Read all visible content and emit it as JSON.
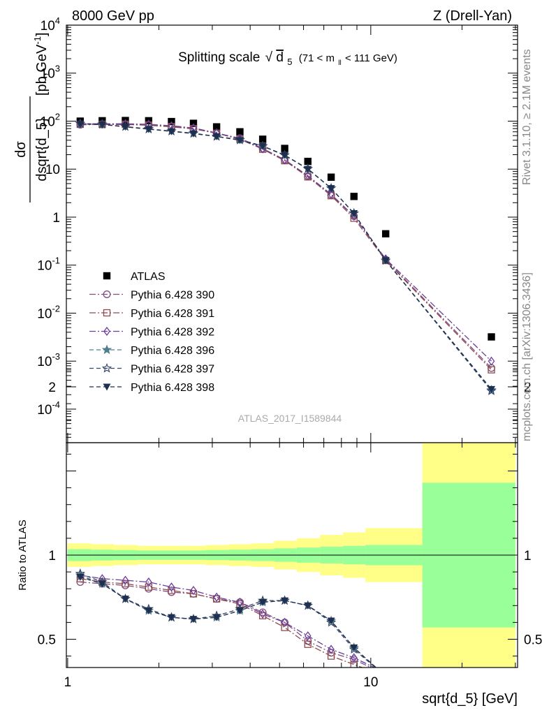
{
  "header": {
    "left": "8000 GeV pp",
    "right": "Z (Drell-Yan)"
  },
  "side_labels": {
    "rivet": "Rivet 3.1.10, ≥ 2.1M events",
    "mcplots": "mcplots.cern.ch [arXiv:1306.3436]"
  },
  "watermark": "ATLAS_2017_I1589844",
  "chart_data": [
    {
      "type": "scatter",
      "panel": "main",
      "title": "Splitting scale",
      "title_root": "d",
      "title_root_sub": "5",
      "title_cut_pre": "(71 < m",
      "title_cut_sub": "ll",
      "title_cut_post": " < 111 GeV)",
      "ylabel_num": "dσ",
      "ylabel_den": "dsqrt{d_5}",
      "ylabel_unit": "[pb,GeV",
      "ylabel_unit_sup": "-1",
      "ylabel_unit_close": "]",
      "yscale": "log",
      "xscale": "log",
      "xlim": [
        0.99,
        30.5
      ],
      "ylim": [
        2e-05,
        10000
      ],
      "y_ticks": [
        {
          "v": 0.0001,
          "base": "10",
          "exp": "-4"
        },
        {
          "v": 0.001,
          "base": "10",
          "exp": "-3"
        },
        {
          "v": 0.01,
          "base": "10",
          "exp": "-2"
        },
        {
          "v": 0.1,
          "base": "10",
          "exp": "-1"
        },
        {
          "v": 1,
          "base": "1",
          "exp": ""
        },
        {
          "v": 10,
          "base": "10",
          "exp": ""
        },
        {
          "v": 100,
          "base": "10",
          "exp": "2"
        },
        {
          "v": 1000,
          "base": "10",
          "exp": "3"
        },
        {
          "v": 10000,
          "base": "10",
          "exp": "4"
        }
      ],
      "x": [
        1.1,
        1.3,
        1.55,
        1.85,
        2.2,
        2.6,
        3.1,
        3.7,
        4.4,
        5.2,
        6.2,
        7.4,
        8.8,
        11.2,
        25.0
      ],
      "bin_edges": [
        1.0,
        1.2,
        1.42,
        1.7,
        2.0,
        2.4,
        2.85,
        3.4,
        4.05,
        4.8,
        5.7,
        6.8,
        8.1,
        9.6,
        14.8,
        30.0
      ],
      "series": [
        {
          "name": "ATLAS",
          "color": "#000000",
          "marker": "square",
          "dash": "",
          "y": [
            100,
            102,
            103,
            102,
            98,
            90,
            76,
            60,
            42,
            27,
            14.5,
            6.8,
            2.7,
            0.45,
            0.0032
          ]
        },
        {
          "name": "Pythia 6.428 390",
          "color": "#7f4d7f",
          "marker": "circle-open",
          "dash": "9,3,2,3",
          "y": [
            84,
            85,
            85,
            82,
            76,
            69,
            56,
            44,
            27,
            15.5,
            7.1,
            2.9,
            1.05,
            0.13,
            0.00072
          ]
        },
        {
          "name": "Pythia 6.428 391",
          "color": "#8e4a4a",
          "marker": "square-open",
          "dash": "9,3,2,3",
          "y": [
            86,
            86,
            86,
            83,
            77,
            70,
            56,
            42,
            26,
            15,
            6.9,
            2.8,
            0.95,
            0.125,
            0.00066
          ]
        },
        {
          "name": "Pythia 6.428 392",
          "color": "#6a3d9a",
          "marker": "diamond-open",
          "dash": "9,3,2,3",
          "y": [
            88,
            88,
            88,
            86,
            80,
            72,
            57,
            43,
            26.5,
            15.7,
            7.3,
            3.0,
            1.05,
            0.135,
            0.001
          ]
        },
        {
          "name": "Pythia 6.428 396",
          "color": "#4f7f8f",
          "marker": "star-filled",
          "dash": "6,4",
          "y": [
            88,
            85,
            77,
            68,
            62,
            55,
            48,
            40,
            30,
            19.5,
            10.1,
            4.0,
            1.2,
            0.125,
            0.00025
          ]
        },
        {
          "name": "Pythia 6.428 397",
          "color": "#334466",
          "marker": "star-open",
          "dash": "6,4",
          "y": [
            89,
            86,
            77,
            69,
            62,
            56,
            48,
            41,
            30.5,
            19.6,
            10.2,
            4.0,
            1.2,
            0.125,
            0.00024
          ]
        },
        {
          "name": "Pythia 6.428 398",
          "color": "#1f2f4f",
          "marker": "triangle-down",
          "dash": "6,4",
          "y": [
            87,
            85,
            76,
            68,
            61,
            55,
            48,
            40,
            30,
            19.5,
            10.0,
            4.0,
            1.2,
            0.125,
            0.00026
          ]
        }
      ]
    },
    {
      "type": "line",
      "panel": "ratio",
      "ylabel": "Ratio to ATLAS",
      "xlabel": "sqrt{d_5} [GeV]",
      "xscale": "log",
      "xlim": [
        0.99,
        30.5
      ],
      "ylim": [
        0.34,
        2.3
      ],
      "y_ticks": [
        {
          "v": 0.5,
          "label": "0.5"
        },
        {
          "v": 1,
          "label": "1"
        },
        {
          "v": 2,
          "label": "2"
        }
      ],
      "x_ticks": [
        {
          "v": 1,
          "label": "1"
        },
        {
          "v": 10,
          "label": "10"
        }
      ],
      "band_colors": {
        "outer": "#ffff88",
        "inner": "#99ff99"
      },
      "band_outer_halfwidth": [
        0.07,
        0.065,
        0.06,
        0.055,
        0.055,
        0.055,
        0.06,
        0.065,
        0.07,
        0.085,
        0.1,
        0.12,
        0.135,
        0.16,
        0.92
      ],
      "band_inner_halfwidth": [
        0.035,
        0.032,
        0.03,
        0.028,
        0.028,
        0.028,
        0.03,
        0.032,
        0.035,
        0.04,
        0.045,
        0.05,
        0.055,
        0.06,
        0.43
      ],
      "series": [
        {
          "name": "Pythia 6.428 390",
          "y": [
            0.84,
            0.83,
            0.82,
            0.8,
            0.78,
            0.77,
            0.74,
            0.72,
            0.66,
            0.6,
            0.49,
            0.42,
            0.38,
            0.29
          ]
        },
        {
          "name": "Pythia 6.428 391",
          "y": [
            0.86,
            0.84,
            0.83,
            0.81,
            0.79,
            0.77,
            0.74,
            0.71,
            0.64,
            0.57,
            0.47,
            0.4,
            0.35,
            0.28
          ]
        },
        {
          "name": "Pythia 6.428 392",
          "y": [
            0.88,
            0.86,
            0.85,
            0.84,
            0.81,
            0.79,
            0.75,
            0.72,
            0.65,
            0.6,
            0.52,
            0.44,
            0.39,
            0.3
          ]
        },
        {
          "name": "Pythia 6.428 396",
          "y": [
            0.88,
            0.83,
            0.74,
            0.67,
            0.63,
            0.62,
            0.63,
            0.67,
            0.72,
            0.73,
            0.7,
            0.61,
            0.45,
            0.28
          ]
        },
        {
          "name": "Pythia 6.428 397",
          "y": [
            0.89,
            0.84,
            0.74,
            0.68,
            0.63,
            0.62,
            0.64,
            0.68,
            0.73,
            0.73,
            0.7,
            0.6,
            0.44,
            0.28
          ]
        },
        {
          "name": "Pythia 6.428 398",
          "y": [
            0.87,
            0.83,
            0.74,
            0.67,
            0.63,
            0.62,
            0.63,
            0.67,
            0.72,
            0.73,
            0.7,
            0.61,
            0.45,
            0.28
          ]
        }
      ]
    }
  ]
}
